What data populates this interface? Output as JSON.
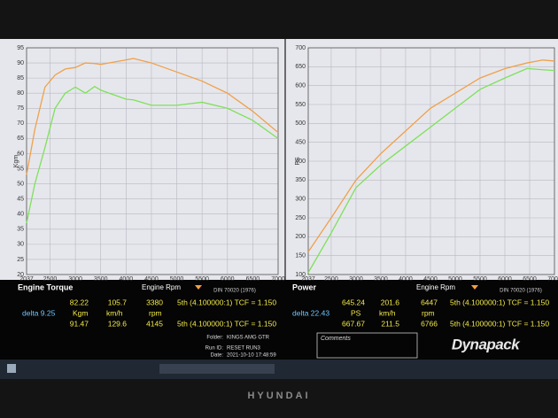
{
  "chart_data": [
    {
      "type": "line",
      "title": "Engine Torque",
      "y_label": "Kgm",
      "x_label": "Engine Rpm",
      "note": "DIN 70020 (1976)",
      "x": [
        2037,
        2200,
        2400,
        2600,
        2800,
        3000,
        3200,
        3380,
        3500,
        4000,
        4145,
        4500,
        5000,
        5500,
        6000,
        6500,
        7000
      ],
      "series": [
        {
          "color": "#f0a04a",
          "values": [
            53,
            68,
            82,
            86,
            88,
            88.5,
            90,
            89.8,
            89.5,
            91,
            91.47,
            90,
            87,
            84,
            80,
            74,
            67
          ]
        },
        {
          "color": "#7ee05a",
          "values": [
            37,
            50,
            62,
            75,
            80,
            82,
            80,
            82.22,
            81,
            78,
            77.8,
            76,
            76,
            77,
            75,
            71,
            65
          ]
        }
      ],
      "xlim": [
        2037,
        7000
      ],
      "xticks": [
        2037,
        2500,
        3000,
        3500,
        4000,
        4500,
        5000,
        5500,
        6000,
        6500,
        7000
      ],
      "ylim": [
        20,
        95
      ],
      "yticks": [
        20,
        25,
        30,
        35,
        40,
        45,
        50,
        55,
        60,
        65,
        70,
        75,
        80,
        85,
        90,
        95
      ],
      "grid": true
    },
    {
      "type": "line",
      "title": "Power",
      "y_label": "PS",
      "x_label": "Engine Rpm",
      "note": "DIN 70020 (1976)",
      "x": [
        2037,
        2500,
        3000,
        3500,
        4000,
        4500,
        5000,
        5500,
        6000,
        6447,
        6766,
        7000
      ],
      "series": [
        {
          "color": "#f0a04a",
          "values": [
            160,
            250,
            350,
            420,
            480,
            540,
            580,
            620,
            645,
            660,
            667.67,
            665
          ]
        },
        {
          "color": "#7ee05a",
          "values": [
            105,
            210,
            330,
            390,
            440,
            490,
            540,
            590,
            620,
            645.24,
            642,
            640
          ]
        }
      ],
      "xlim": [
        2037,
        7000
      ],
      "xticks": [
        2037,
        2500,
        3000,
        3500,
        4000,
        4500,
        5000,
        5500,
        6000,
        6500,
        7000
      ],
      "ylim": [
        100,
        700
      ],
      "yticks": [
        100,
        150,
        200,
        250,
        300,
        350,
        400,
        450,
        500,
        550,
        600,
        650,
        700
      ],
      "grid": true
    }
  ],
  "torque_panel": {
    "row1": [
      "82.22",
      "105.7",
      "3380",
      "5th (4.100000:1) TCF = 1.150"
    ],
    "delta": "delta 9.25",
    "units": [
      "Kgm",
      "km/h",
      "rpm"
    ],
    "row2": [
      "91.47",
      "129.6",
      "4145",
      "5th (4.100000:1) TCF = 1.150"
    ]
  },
  "power_panel": {
    "row1": [
      "645.24",
      "201.6",
      "6447",
      "5th (4.100000:1) TCF = 1.150"
    ],
    "delta": "delta 22.43",
    "units": [
      "PS",
      "km/h",
      "rpm"
    ],
    "row2": [
      "667.67",
      "211.5",
      "6766",
      "5th (4.100000:1) TCF = 1.150"
    ]
  },
  "run_info": {
    "folder_label": "Folder:",
    "folder": "KINGS AMG GTR",
    "run_label": "Run ID:",
    "run": "RESET RUN3",
    "date_label": "Date:",
    "date": "2021-10-10 17:48:59",
    "comments": "Comments"
  },
  "logo": "Dynapack",
  "bezel_brand": "HYUNDAI"
}
